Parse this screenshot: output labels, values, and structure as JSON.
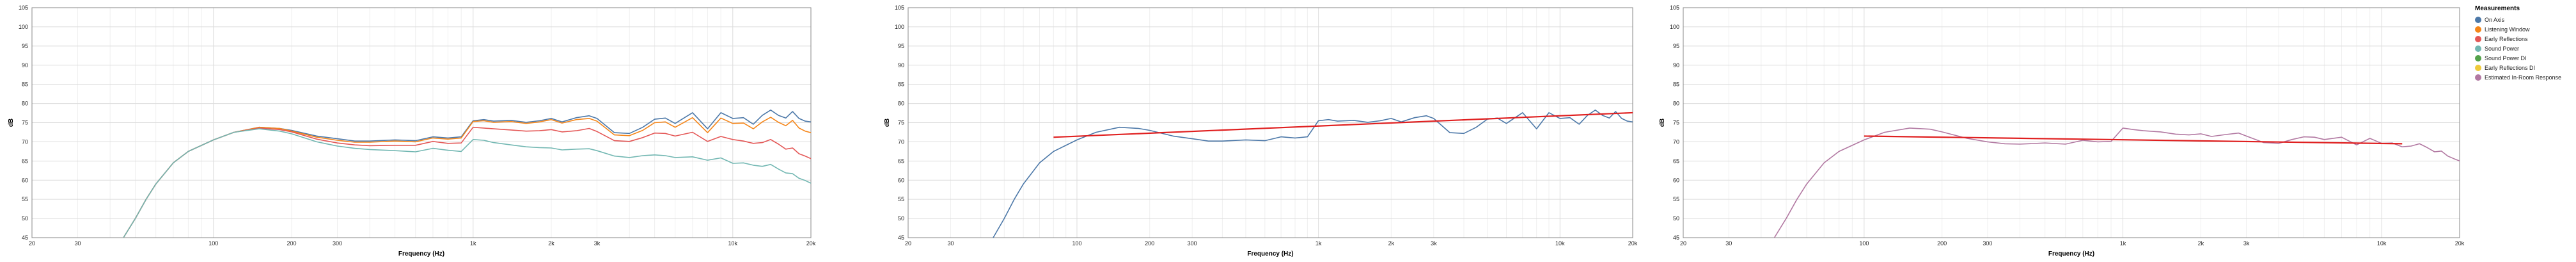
{
  "colors": {
    "on_axis": "#4c78a8",
    "listening_window": "#f58518",
    "early_reflections": "#e45756",
    "sound_power": "#72b7b2",
    "sound_power_di": "#54a24b",
    "early_reflections_di": "#eeca3b",
    "estimated_in_room": "#b279a2",
    "regression": "#e02020"
  },
  "legend": {
    "title": "Measurements",
    "items": [
      {
        "label": "On Axis",
        "color": "#4c78a8"
      },
      {
        "label": "Listening Window",
        "color": "#f58518"
      },
      {
        "label": "Early Reflections",
        "color": "#e45756"
      },
      {
        "label": "Sound Power",
        "color": "#72b7b2"
      },
      {
        "label": "Sound Power DI",
        "color": "#54a24b"
      },
      {
        "label": "Early Reflections DI",
        "color": "#eeca3b"
      },
      {
        "label": "Estimated In-Room Response",
        "color": "#b279a2"
      }
    ]
  },
  "chart_data": [
    {
      "type": "line",
      "xlabel": "Frequency (Hz)",
      "ylabel": "dB",
      "x_scale": "log",
      "xlim": [
        20,
        20000
      ],
      "ylim": [
        45,
        105
      ],
      "grid": true,
      "x_ticks": [
        "20",
        "30",
        "100",
        "200",
        "300",
        "1k",
        "2k",
        "3k",
        "10k",
        "20k"
      ],
      "y_ticks": [
        "45",
        "50",
        "55",
        "60",
        "65",
        "70",
        "75",
        "80",
        "85",
        "90",
        "95",
        "100",
        "105"
      ],
      "x": [
        45,
        50,
        55,
        60,
        70,
        80,
        100,
        120,
        150,
        180,
        200,
        250,
        300,
        350,
        400,
        500,
        600,
        700,
        800,
        900,
        1000,
        1100,
        1200,
        1400,
        1600,
        1800,
        2000,
        2200,
        2500,
        2800,
        3000,
        3500,
        4000,
        4500,
        5000,
        5500,
        6000,
        7000,
        8000,
        9000,
        10000,
        11000,
        12000,
        13000,
        14000,
        15000,
        16000,
        17000,
        18000,
        19000,
        20000
      ],
      "series": [
        {
          "name": "On Axis",
          "color": "#4c78a8",
          "values": [
            45,
            50,
            55,
            59,
            64.5,
            67.5,
            70.5,
            72.5,
            73.8,
            73.5,
            73,
            71.5,
            70.8,
            70.2,
            70.2,
            70.5,
            70.3,
            71.3,
            71,
            71.3,
            75.5,
            75.8,
            75.4,
            75.6,
            75.1,
            75.5,
            76.1,
            75.2,
            76.3,
            76.8,
            76.1,
            72.4,
            72.2,
            73.8,
            75.9,
            76.2,
            74.8,
            77.6,
            73.4,
            77.6,
            76.1,
            76.3,
            74.6,
            76.9,
            78.3,
            76.9,
            76.2,
            77.9,
            76.1,
            75.4,
            75.2
          ]
        },
        {
          "name": "Listening Window",
          "color": "#f58518",
          "values": [
            45,
            50,
            55,
            59,
            64.5,
            67.5,
            70.5,
            72.5,
            73.8,
            73.5,
            72.8,
            71.2,
            70.4,
            69.9,
            69.9,
            70.2,
            70,
            71,
            70.7,
            71,
            75.3,
            75.5,
            75.1,
            75.3,
            74.8,
            75.2,
            75.8,
            74.9,
            75.8,
            76.1,
            75.4,
            71.8,
            71.6,
            73,
            75,
            75.2,
            73.8,
            76.3,
            72.4,
            76.2,
            74.8,
            74.9,
            73.4,
            75.2,
            76.4,
            75.1,
            74.2,
            75.6,
            73.6,
            72.8,
            72.4
          ]
        },
        {
          "name": "Early Reflections",
          "color": "#e45756",
          "values": [
            45,
            50,
            55,
            59,
            64.5,
            67.5,
            70.5,
            72.5,
            73.6,
            73.2,
            72.6,
            70.7,
            69.7,
            69.2,
            69,
            69.1,
            69.1,
            70.1,
            69.6,
            69.7,
            73.8,
            73.6,
            73.4,
            73.1,
            72.8,
            72.9,
            73.2,
            72.6,
            72.9,
            73.5,
            72.7,
            70.3,
            70.1,
            71.1,
            72.3,
            72.2,
            71.5,
            72.5,
            70.1,
            71.4,
            70.6,
            70.2,
            69.6,
            69.8,
            70.6,
            69.4,
            68.1,
            68.4,
            66.9,
            66.3,
            65.6
          ]
        },
        {
          "name": "Sound Power",
          "color": "#72b7b2",
          "values": [
            45,
            50,
            55,
            59,
            64.5,
            67.5,
            70.5,
            72.5,
            73.4,
            72.8,
            72.1,
            70,
            68.9,
            68.3,
            68,
            67.7,
            67.4,
            68.3,
            67.8,
            67.5,
            70.6,
            70.4,
            69.8,
            69.2,
            68.7,
            68.5,
            68.4,
            67.9,
            68.1,
            68.2,
            67.7,
            66.3,
            65.9,
            66.4,
            66.6,
            66.4,
            65.9,
            66.1,
            65.2,
            65.8,
            64.4,
            64.5,
            63.9,
            63.6,
            64.1,
            62.9,
            61.9,
            61.7,
            60.5,
            59.9,
            59.2
          ]
        }
      ]
    },
    {
      "type": "line",
      "xlabel": "Frequency (Hz)",
      "ylabel": "dB",
      "x_scale": "log",
      "xlim": [
        20,
        20000
      ],
      "ylim": [
        45,
        105
      ],
      "grid": true,
      "x_ticks": [
        "20",
        "30",
        "100",
        "200",
        "300",
        "1k",
        "2k",
        "3k",
        "10k",
        "20k"
      ],
      "y_ticks": [
        "45",
        "50",
        "55",
        "60",
        "65",
        "70",
        "75",
        "80",
        "85",
        "90",
        "95",
        "100",
        "105"
      ],
      "x": [
        45,
        50,
        55,
        60,
        70,
        80,
        100,
        120,
        150,
        180,
        200,
        250,
        300,
        350,
        400,
        500,
        600,
        700,
        800,
        900,
        1000,
        1100,
        1200,
        1400,
        1600,
        1800,
        2000,
        2200,
        2500,
        2800,
        3000,
        3500,
        4000,
        4500,
        5000,
        5500,
        6000,
        7000,
        8000,
        9000,
        10000,
        11000,
        12000,
        13000,
        14000,
        15000,
        16000,
        17000,
        18000,
        19000,
        20000
      ],
      "series": [
        {
          "name": "On Axis",
          "color": "#4c78a8",
          "values": [
            45,
            50,
            55,
            59,
            64.5,
            67.5,
            70.5,
            72.5,
            73.8,
            73.5,
            73,
            71.5,
            70.8,
            70.2,
            70.2,
            70.5,
            70.3,
            71.3,
            71,
            71.3,
            75.5,
            75.8,
            75.4,
            75.6,
            75.1,
            75.5,
            76.1,
            75.2,
            76.3,
            76.8,
            76.1,
            72.4,
            72.2,
            73.8,
            75.9,
            76.2,
            74.8,
            77.6,
            73.4,
            77.6,
            76.1,
            76.3,
            74.6,
            76.9,
            78.3,
            76.9,
            76.2,
            77.9,
            76.1,
            75.4,
            75.2
          ]
        }
      ],
      "regression": {
        "color": "#e02020",
        "x": [
          80,
          20000
        ],
        "y": [
          71.2,
          77.6
        ]
      }
    },
    {
      "type": "line",
      "xlabel": "Frequency (Hz)",
      "ylabel": "dB",
      "x_scale": "log",
      "xlim": [
        20,
        20000
      ],
      "ylim": [
        45,
        105
      ],
      "grid": true,
      "x_ticks": [
        "20",
        "30",
        "100",
        "200",
        "300",
        "1k",
        "2k",
        "3k",
        "10k",
        "20k"
      ],
      "y_ticks": [
        "45",
        "50",
        "55",
        "60",
        "65",
        "70",
        "75",
        "80",
        "85",
        "90",
        "95",
        "100",
        "105"
      ],
      "x": [
        45,
        50,
        55,
        60,
        70,
        80,
        100,
        120,
        150,
        180,
        200,
        250,
        300,
        350,
        400,
        500,
        600,
        700,
        800,
        900,
        1000,
        1100,
        1200,
        1400,
        1600,
        1800,
        2000,
        2200,
        2500,
        2800,
        3000,
        3500,
        4000,
        4500,
        5000,
        5500,
        6000,
        7000,
        8000,
        9000,
        10000,
        11000,
        12000,
        13000,
        14000,
        15000,
        16000,
        17000,
        18000,
        19000,
        20000
      ],
      "series": [
        {
          "name": "Estimated In-Room Response",
          "color": "#b279a2",
          "values": [
            45,
            50,
            55,
            59,
            64.5,
            67.5,
            70.5,
            72.5,
            73.6,
            73.3,
            72.6,
            70.9,
            70,
            69.5,
            69.4,
            69.7,
            69.4,
            70.4,
            70,
            70.1,
            73.6,
            73.2,
            72.9,
            72.6,
            72,
            71.8,
            72.1,
            71.4,
            71.9,
            72.3,
            71.5,
            69.8,
            69.6,
            70.6,
            71.3,
            71.2,
            70.6,
            71.2,
            69.2,
            70.9,
            69.6,
            69.7,
            68.7,
            68.9,
            69.5,
            68.5,
            67.4,
            67.6,
            66.3,
            65.6,
            65
          ]
        }
      ],
      "regression": {
        "color": "#e02020",
        "x": [
          100,
          12000
        ],
        "y": [
          71.5,
          69.5
        ]
      }
    }
  ]
}
